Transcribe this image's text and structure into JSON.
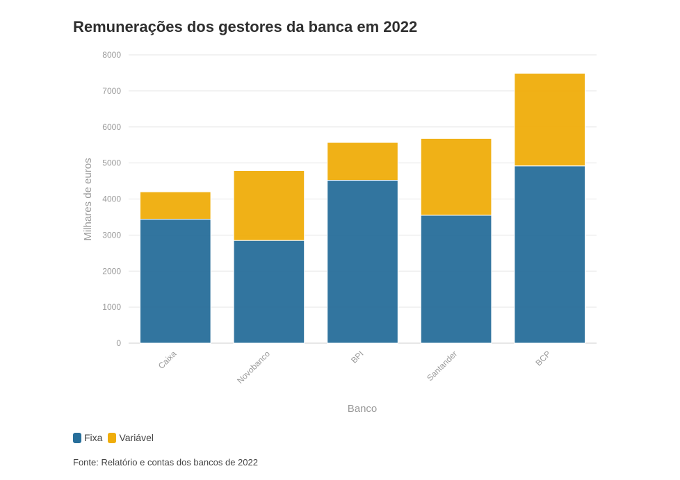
{
  "chart_data": {
    "type": "bar",
    "stacked": true,
    "title": "Remunerações dos gestores da banca em 2022",
    "xlabel": "Banco",
    "ylabel": "Milhares de euros",
    "ylim": [
      0,
      8000
    ],
    "yticks": [
      "0",
      "1000",
      "2000",
      "3000",
      "4000",
      "5000",
      "6000",
      "7000",
      "8000"
    ],
    "categories": [
      "Caixa",
      "Novobanco",
      "BPI",
      "Santander",
      "BCP"
    ],
    "series": [
      {
        "name": "Fixa",
        "color": "#276e9a",
        "values": [
          3440,
          2850,
          4520,
          3550,
          4920
        ]
      },
      {
        "name": "Variável",
        "color": "#efad0b",
        "values": [
          760,
          1940,
          1050,
          2130,
          2570
        ]
      }
    ],
    "grid": true,
    "legend_position": "bottom-left",
    "source": "Fonte: Relatório e contas dos bancos de 2022"
  }
}
